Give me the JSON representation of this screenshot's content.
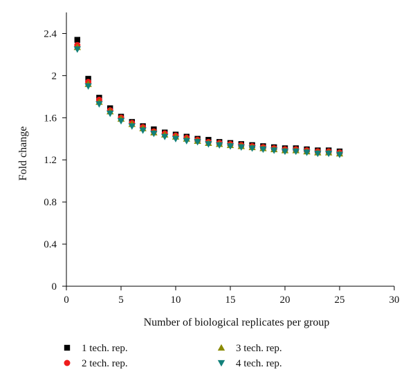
{
  "chart_data": {
    "type": "scatter",
    "xlabel": "Number of biological replicates per group",
    "ylabel": "Fold change",
    "xlim": [
      0,
      30
    ],
    "ylim": [
      0,
      2.6
    ],
    "xticks": [
      0,
      5,
      10,
      15,
      20,
      25,
      30
    ],
    "xtick_labels": [
      "0",
      "5",
      "10",
      "15",
      "20",
      "25",
      "30"
    ],
    "yticks": [
      0,
      0.4,
      0.8,
      1.2,
      1.6,
      2.0,
      2.4
    ],
    "ytick_labels": [
      "0",
      "0.4",
      "0.8",
      "1.2",
      "1.6",
      "2",
      "2.4"
    ],
    "grid": false,
    "legend_position": "bottom",
    "x": [
      1,
      2,
      3,
      4,
      5,
      6,
      7,
      8,
      9,
      10,
      11,
      12,
      13,
      14,
      15,
      16,
      17,
      18,
      19,
      20,
      21,
      22,
      23,
      24,
      25
    ],
    "series": [
      {
        "name": "1 tech. rep.",
        "marker": "square",
        "color": "#000000",
        "values": [
          2.34,
          1.97,
          1.79,
          1.69,
          1.61,
          1.56,
          1.52,
          1.49,
          1.46,
          1.44,
          1.42,
          1.4,
          1.39,
          1.37,
          1.36,
          1.35,
          1.34,
          1.33,
          1.32,
          1.31,
          1.31,
          1.3,
          1.29,
          1.29,
          1.28
        ]
      },
      {
        "name": "2 tech. rep.",
        "marker": "circle",
        "color": "#ee1c1c",
        "values": [
          2.29,
          1.94,
          1.77,
          1.67,
          1.6,
          1.55,
          1.51,
          1.47,
          1.45,
          1.43,
          1.41,
          1.39,
          1.37,
          1.36,
          1.35,
          1.34,
          1.33,
          1.32,
          1.31,
          1.3,
          1.3,
          1.29,
          1.28,
          1.28,
          1.27
        ]
      },
      {
        "name": "3 tech. rep.",
        "marker": "triangle-up",
        "color": "#8a8a00",
        "values": [
          2.27,
          1.92,
          1.75,
          1.66,
          1.59,
          1.54,
          1.5,
          1.46,
          1.44,
          1.42,
          1.4,
          1.38,
          1.36,
          1.35,
          1.34,
          1.33,
          1.32,
          1.31,
          1.3,
          1.29,
          1.29,
          1.28,
          1.27,
          1.27,
          1.26
        ]
      },
      {
        "name": "4 tech. rep.",
        "marker": "triangle-down",
        "color": "#12807a",
        "values": [
          2.25,
          1.9,
          1.73,
          1.64,
          1.57,
          1.52,
          1.48,
          1.45,
          1.42,
          1.4,
          1.38,
          1.37,
          1.35,
          1.34,
          1.33,
          1.32,
          1.31,
          1.3,
          1.29,
          1.28,
          1.28,
          1.27,
          1.26,
          1.26,
          1.25
        ]
      }
    ]
  }
}
